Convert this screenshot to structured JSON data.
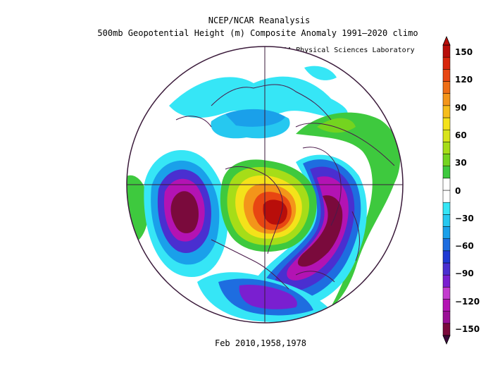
{
  "header": {
    "title": "NCEP/NCAR Reanalysis",
    "subtitle": "500mb Geopotential Height (m) Composite Anomaly 1991–2020 climo",
    "credit": "NOAA Physical Sciences Laboratory"
  },
  "caption": "Feb 2010,1958,1978",
  "colorbar": {
    "tick_labels": [
      "150",
      "120",
      "90",
      "60",
      "30",
      "0",
      "−30",
      "−60",
      "−90",
      "−120",
      "−150"
    ],
    "colors": [
      "#7a0a3c",
      "#9a1096",
      "#b313b3",
      "#c43ccf",
      "#7a1fd0",
      "#4a2fd0",
      "#1f3ad4",
      "#1e6de0",
      "#1aa0ea",
      "#26c8f0",
      "#36e6f6",
      "#ffffff",
      "#ffffff",
      "#3ec93e",
      "#74d41f",
      "#a6dd18",
      "#d8e41a",
      "#f4e21a",
      "#f6bd1a",
      "#f3951a",
      "#ee6e16",
      "#e84612",
      "#d8260c",
      "#b80e0a"
    ]
  }
}
